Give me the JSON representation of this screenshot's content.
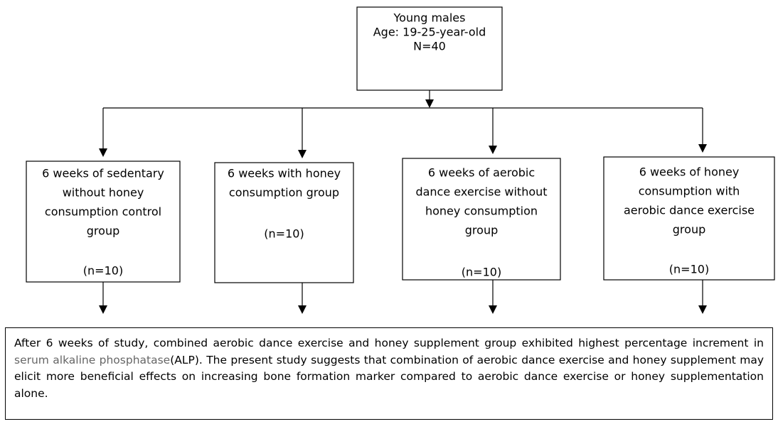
{
  "top": {
    "lines": [
      "Young males",
      "Age: 19-25-year-old",
      "N=40"
    ]
  },
  "groups": [
    {
      "lines": [
        "6 weeks of sedentary",
        "without honey",
        "consumption control",
        "group"
      ],
      "n": "(n=10)"
    },
    {
      "lines": [
        "6 weeks with honey",
        "consumption group"
      ],
      "n": "(n=10)"
    },
    {
      "lines": [
        "6 weeks of aerobic",
        "dance exercise without",
        "honey consumption",
        "group"
      ],
      "n": "(n=10)"
    },
    {
      "lines": [
        "6 weeks of honey",
        "consumption with",
        "aerobic dance exercise",
        "group"
      ],
      "n": "(n=10)"
    }
  ],
  "conclusion": {
    "parts": [
      "After 6 weeks of study, combined aerobic dance exercise and honey supplement group exhibited highest percentage increment in",
      "serum alkaline phosphatase",
      "(ALP). The present study suggests that combination of aerobic dance exercise and honey supplement may elicit more beneficial effects on increasing bone formation marker compared to aerobic dance exercise or honey supplementation alone."
    ]
  }
}
